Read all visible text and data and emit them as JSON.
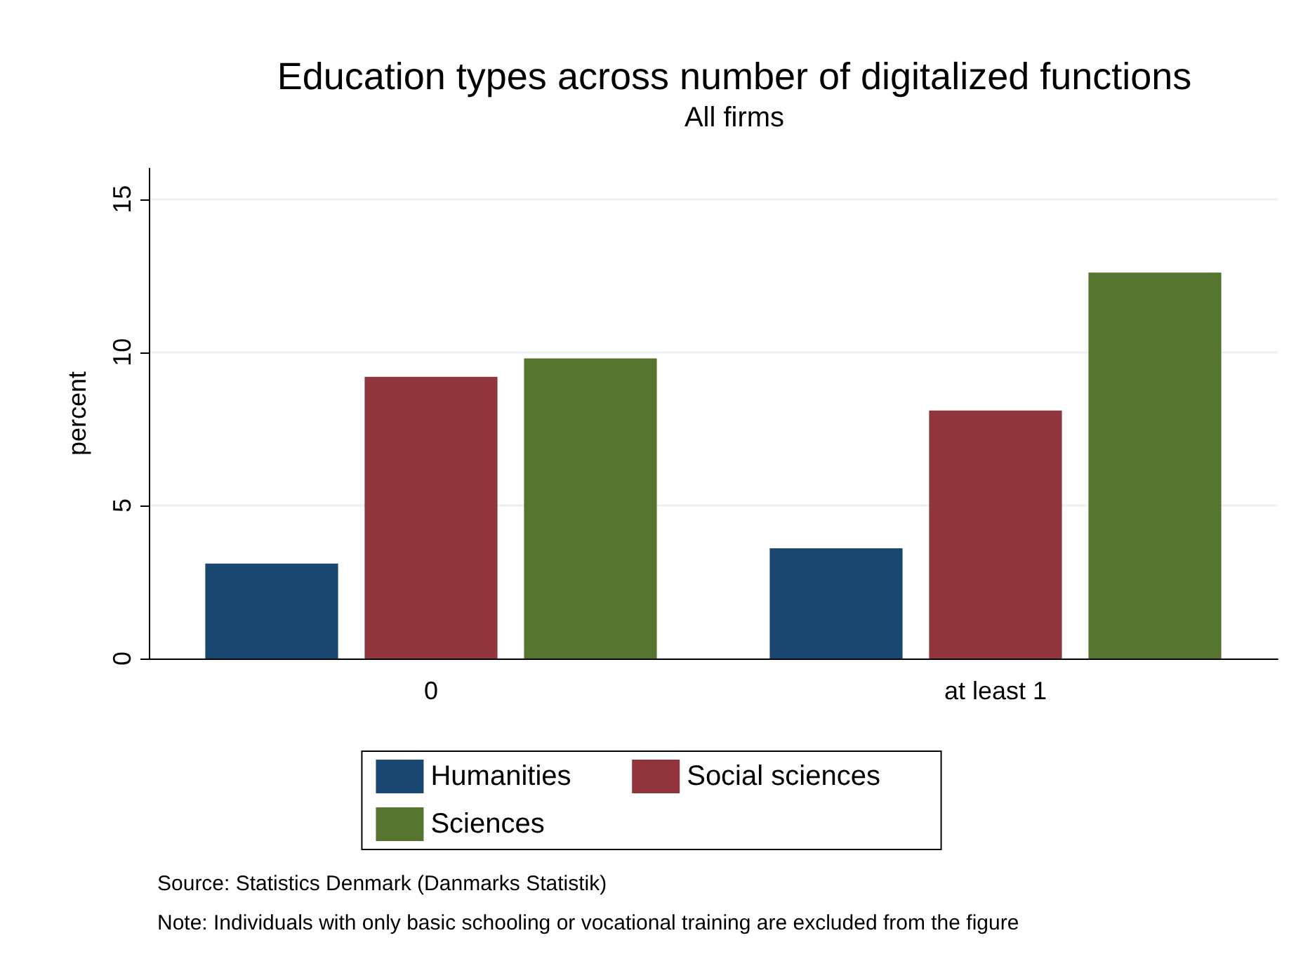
{
  "chart_data": {
    "type": "bar",
    "title": "Education types across number of digitalized functions",
    "subtitle": "All firms",
    "ylabel": "percent",
    "categories": [
      "0",
      "at least 1"
    ],
    "series": [
      {
        "name": "Humanities",
        "color": "#1a476f",
        "values": [
          3.1,
          3.6
        ]
      },
      {
        "name": "Social sciences",
        "color": "#90353b",
        "values": [
          9.2,
          8.1
        ]
      },
      {
        "name": "Sciences",
        "color": "#55752f",
        "values": [
          9.8,
          12.6
        ]
      }
    ],
    "ylim": [
      0,
      16
    ],
    "yticks": [
      0,
      5,
      10,
      15
    ],
    "grid": "y",
    "legend": "bottom",
    "annotations": [
      "Source: Statistics Denmark (Danmarks Statistik)",
      "Note: Individuals with only basic schooling or vocational training are excluded from the figure"
    ]
  }
}
